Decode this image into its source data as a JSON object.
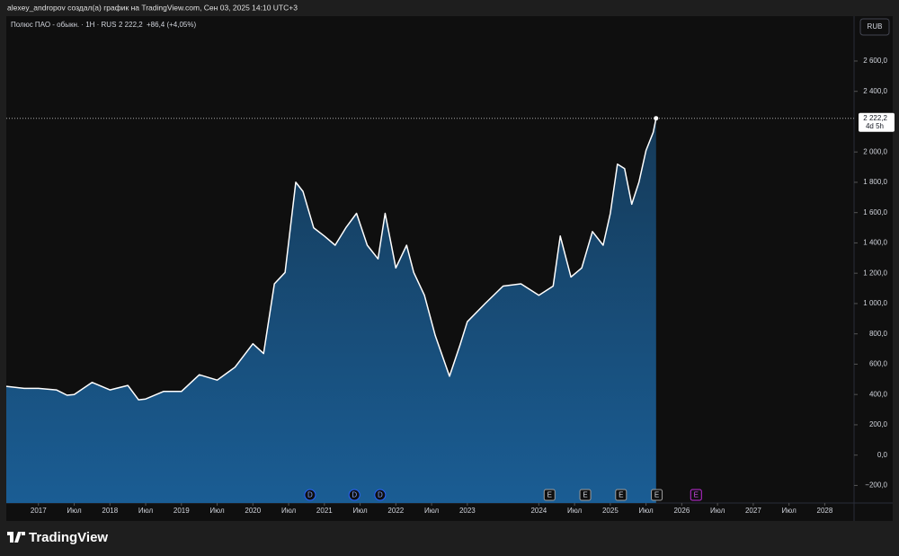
{
  "header": "alexey_andropov создал(а) график на TradingView.com, Сен 03, 2025 14:10 UTC+3",
  "legend": {
    "symbol": "Полюс ПАО - обыкн. · 1H · RUS",
    "price": "2 222,2",
    "change": "+86,4 (+4,05%)"
  },
  "currency": "RUB",
  "brand": "TradingView",
  "chart_data": {
    "type": "area",
    "line_color": "#ffffff",
    "fill_color": "#1a5d94",
    "x": [
      2016.55,
      2016.8,
      2017.0,
      2017.25,
      2017.4,
      2017.5,
      2017.75,
      2018.0,
      2018.25,
      2018.4,
      2018.5,
      2018.75,
      2019.0,
      2019.25,
      2019.5,
      2019.75,
      2020.0,
      2020.15,
      2020.3,
      2020.45,
      2020.55,
      2020.6,
      2020.7,
      2020.85,
      2021.0,
      2021.15,
      2021.3,
      2021.45,
      2021.6,
      2021.75,
      2021.85,
      2022.0,
      2022.15,
      2022.25,
      2022.4,
      2022.55,
      2022.75,
      2022.9,
      2023.0,
      2023.25,
      2023.5,
      2023.75,
      2024.0,
      2024.2,
      2024.3,
      2024.45,
      2024.6,
      2024.75,
      2024.9,
      2025.0,
      2025.1,
      2025.2,
      2025.3,
      2025.4,
      2025.5,
      2025.6,
      2025.64
    ],
    "values": [
      454,
      440,
      440,
      430,
      395,
      400,
      480,
      430,
      460,
      365,
      370,
      420,
      420,
      530,
      495,
      580,
      735,
      670,
      1130,
      1205,
      1600,
      1800,
      1740,
      1500,
      1445,
      1385,
      1500,
      1595,
      1385,
      1295,
      1595,
      1235,
      1385,
      1205,
      1055,
      790,
      520,
      730,
      880,
      1000,
      1115,
      1130,
      1055,
      1115,
      1445,
      1175,
      1235,
      1475,
      1385,
      1595,
      1920,
      1890,
      1655,
      1800,
      2010,
      2130,
      2222.2
    ],
    "last_price": {
      "value": 2222.2,
      "label": "2 222,2"
    },
    "countdown": "4d 5h",
    "xlim": [
      2016.55,
      2028.41
    ],
    "ylim": [
      -316,
      2896
    ],
    "xticks": [
      2017,
      {
        "value": 2017.5,
        "label": "Июл"
      },
      2018,
      {
        "value": 2018.5,
        "label": "Июл"
      },
      2019,
      {
        "value": 2019.5,
        "label": "Июл"
      },
      2020,
      {
        "value": 2020.5,
        "label": "Июл"
      },
      2021,
      {
        "value": 2021.5,
        "label": "Июл"
      },
      2022,
      {
        "value": 2022.5,
        "label": "Июл"
      },
      2023,
      2024,
      {
        "value": 2024.5,
        "label": "Июл"
      },
      2025,
      {
        "value": 2025.5,
        "label": "Июл"
      },
      2026,
      {
        "value": 2026.5,
        "label": "Июл"
      },
      2027,
      {
        "value": 2027.5,
        "label": "Июл"
      },
      2028
    ],
    "yticks": [
      {
        "value": -200,
        "label": "−200,0"
      },
      {
        "value": 0,
        "label": "0,0"
      },
      {
        "value": 200,
        "label": "200,0"
      },
      {
        "value": 400,
        "label": "400,0"
      },
      {
        "value": 600,
        "label": "600,0"
      },
      {
        "value": 800,
        "label": "800,0"
      },
      {
        "value": 1000,
        "label": "1 000,0"
      },
      {
        "value": 1200,
        "label": "1 200,0"
      },
      {
        "value": 1400,
        "label": "1 400,0"
      },
      {
        "value": 1600,
        "label": "1 600,0"
      },
      {
        "value": 1800,
        "label": "1 800,0"
      },
      {
        "value": 2000,
        "label": "2 000,0"
      },
      {
        "value": 2400,
        "label": "2 400,0"
      },
      {
        "value": 2600,
        "label": "2 600,0"
      }
    ],
    "events": [
      {
        "label": "D",
        "x": 2020.8,
        "color": "#2962ff"
      },
      {
        "label": "D",
        "x": 2021.42,
        "color": "#2962ff"
      },
      {
        "label": "D",
        "x": 2021.78,
        "color": "#2962ff"
      },
      {
        "label": "E",
        "x": 2024.15,
        "color": "#9e9e9e"
      },
      {
        "label": "E",
        "x": 2024.65,
        "color": "#9e9e9e"
      },
      {
        "label": "E",
        "x": 2025.15,
        "color": "#9e9e9e"
      },
      {
        "label": "E",
        "x": 2025.65,
        "color": "#9e9e9e"
      },
      {
        "label": "E",
        "x": 2026.2,
        "color": "#c02bd8"
      }
    ]
  }
}
